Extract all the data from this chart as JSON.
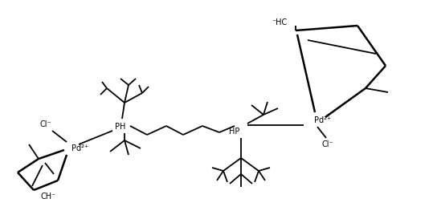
{
  "background": "#ffffff",
  "line_color": "#000000",
  "line_width": 1.3,
  "text_color": "#000000",
  "fig_width": 5.39,
  "fig_height": 2.78,
  "dpi": 100,
  "labels": {
    "Pd2plus_left": "Pd²⁺",
    "Pd2plus_right": "Pd²⁺",
    "Cl_left": "Cl⁻",
    "Cl_right": "Cl⁻",
    "CH_left": "CH⁻",
    "HC_right": "⁻HC",
    "PH_left": "PH",
    "HP_right": "HP"
  }
}
